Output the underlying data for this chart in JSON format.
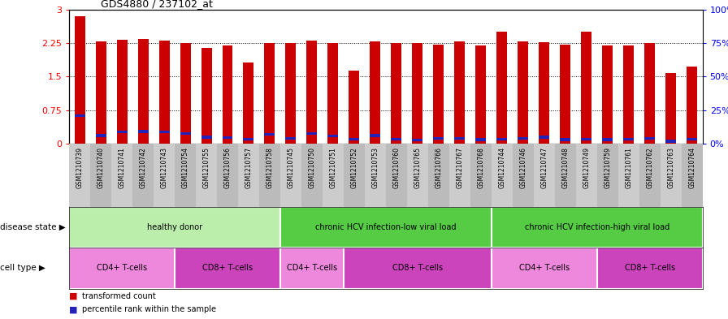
{
  "title": "GDS4880 / 237102_at",
  "samples": [
    "GSM1210739",
    "GSM1210740",
    "GSM1210741",
    "GSM1210742",
    "GSM1210743",
    "GSM1210754",
    "GSM1210755",
    "GSM1210756",
    "GSM1210757",
    "GSM1210758",
    "GSM1210745",
    "GSM1210750",
    "GSM1210751",
    "GSM1210752",
    "GSM1210753",
    "GSM1210760",
    "GSM1210765",
    "GSM1210766",
    "GSM1210767",
    "GSM1210768",
    "GSM1210744",
    "GSM1210746",
    "GSM1210747",
    "GSM1210748",
    "GSM1210749",
    "GSM1210759",
    "GSM1210761",
    "GSM1210762",
    "GSM1210763",
    "GSM1210764"
  ],
  "transformed_count": [
    2.85,
    2.28,
    2.32,
    2.35,
    2.3,
    2.25,
    2.15,
    2.19,
    1.82,
    2.25,
    2.26,
    2.3,
    2.25,
    1.63,
    2.28,
    2.25,
    2.25,
    2.22,
    2.28,
    2.19,
    2.5,
    2.28,
    2.27,
    2.22,
    2.5,
    2.19,
    2.2,
    2.25,
    1.57,
    1.72
  ],
  "percentile_rank_scaled": [
    0.62,
    0.18,
    0.26,
    0.27,
    0.26,
    0.22,
    0.14,
    0.13,
    0.1,
    0.2,
    0.12,
    0.22,
    0.17,
    0.1,
    0.18,
    0.1,
    0.08,
    0.12,
    0.11,
    0.09,
    0.1,
    0.12,
    0.14,
    0.09,
    0.1,
    0.09,
    0.1,
    0.12,
    0.05,
    0.1
  ],
  "ylim_left": [
    0,
    3
  ],
  "ylim_right": [
    0,
    100
  ],
  "yticks_left": [
    0,
    0.75,
    1.5,
    2.25,
    3
  ],
  "yticks_right": [
    0,
    25,
    50,
    75,
    100
  ],
  "bar_color": "#CC0000",
  "percentile_color": "#2222BB",
  "bar_width": 0.5,
  "disease_groups": [
    {
      "label": "healthy donor",
      "start": 0,
      "end": 10,
      "color": "#BBEEAA"
    },
    {
      "label": "chronic HCV infection-low viral load",
      "start": 10,
      "end": 20,
      "color": "#55CC44"
    },
    {
      "label": "chronic HCV infection-high viral load",
      "start": 20,
      "end": 30,
      "color": "#55CC44"
    }
  ],
  "cell_type_groups": [
    {
      "label": "CD4+ T-cells",
      "start": 0,
      "end": 5,
      "color": "#EE88DD"
    },
    {
      "label": "CD8+ T-cells",
      "start": 5,
      "end": 10,
      "color": "#CC44BB"
    },
    {
      "label": "CD4+ T-cells",
      "start": 10,
      "end": 13,
      "color": "#EE88DD"
    },
    {
      "label": "CD8+ T-cells",
      "start": 13,
      "end": 20,
      "color": "#CC44BB"
    },
    {
      "label": "CD4+ T-cells",
      "start": 20,
      "end": 25,
      "color": "#EE88DD"
    },
    {
      "label": "CD8+ T-cells",
      "start": 25,
      "end": 30,
      "color": "#CC44BB"
    }
  ]
}
